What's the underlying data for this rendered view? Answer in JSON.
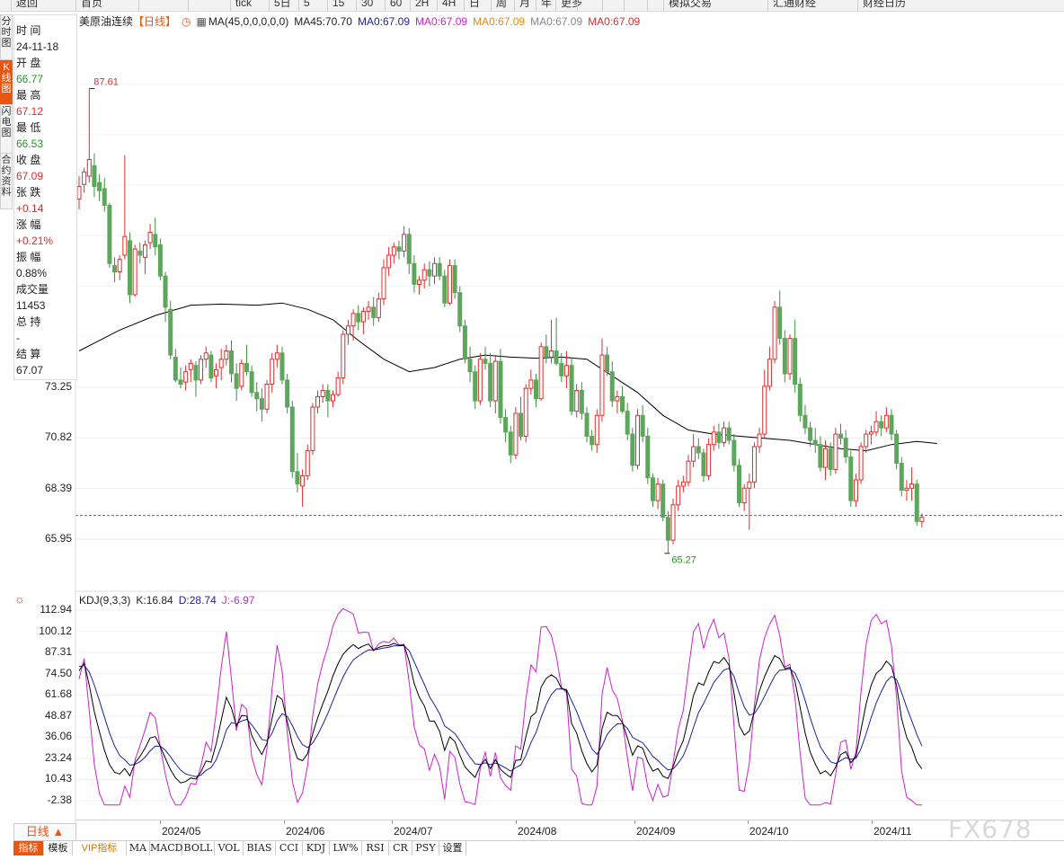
{
  "toolbar": {
    "items": [
      "返回",
      "首页",
      "",
      "",
      "tick",
      "5日",
      "5",
      "15",
      "30",
      "60",
      "2H",
      "4H",
      "日",
      "周",
      "月",
      "年",
      "更多",
      "",
      "",
      "",
      "",
      "模拟交易",
      "汇通财经",
      "财经日历"
    ]
  },
  "left_tabs": [
    "分时图",
    "K线图",
    "闪电图",
    "合约资料"
  ],
  "info_panel": {
    "time_label": "时 间",
    "time_value": "24-11-18",
    "open_label": "开 盘",
    "open_value": "66.77",
    "high_label": "最 高",
    "high_value": "67.12",
    "low_label": "最 低",
    "low_value": "66.53",
    "close_label": "收 盘",
    "close_value": "67.09",
    "change_label": "张 跌",
    "change_value": "+0.14",
    "pct_label": "涨 幅",
    "pct_value": "+0.21%",
    "amp_label": "振 幅",
    "amp_value": "0.88%",
    "vol_label": "成交量",
    "vol_value": "11453",
    "oi_label": "总 持",
    "oi_value": "-",
    "settle_label": "结 算",
    "settle_value": "67.07"
  },
  "legend": {
    "name": "美原油连续",
    "period": "【日线】",
    "ma_params": "MA(45,0,0,0,0,0)",
    "ma1": "MA45:70.70",
    "ma2": "MA0:67.09",
    "ma3": "MA0:67.09",
    "ma4": "MA0:67.09",
    "ma5": "MA0:67.09",
    "ma6": "MA0:67.09"
  },
  "colors": {
    "up": "#e02d2d",
    "down": "#5da75d",
    "ma": "#000000",
    "k": "#000000",
    "d": "#1f1fa0",
    "j": "#cc22cc",
    "last_price": "#2b7d8a",
    "accent": "#e8560f"
  },
  "kdj_legend": {
    "params": "KDJ(9,3,3)",
    "k": "K:16.84",
    "d": "D:28.74",
    "j": "J:-6.97"
  },
  "period_button": "日线 ▲",
  "bottom_tabs": [
    "指标",
    "模板",
    "VIP指标",
    "MA",
    "MACD",
    "BOLL",
    "VOL",
    "BIAS",
    "CCI",
    "KDJ",
    "LW%",
    "RSI",
    "CR",
    "PSY",
    "设置"
  ],
  "watermark": "FX678",
  "chart_data": [
    {
      "type": "candlestick",
      "y_ticks": [
        "73.25",
        "70.82",
        "68.39",
        "65.95"
      ],
      "y_ticks_values": [
        73.25,
        70.82,
        68.39,
        65.95
      ],
      "x_ticks": [
        "2024/05",
        "2024/06",
        "2024/07",
        "2024/08",
        "2024/09",
        "2024/10",
        "2024/11"
      ],
      "annotations": {
        "high_label": "87.61",
        "low_label": "65.27",
        "high": 87.61,
        "low": 65.27
      },
      "last_price": 67.09,
      "ma45_last": 70.7,
      "ohlc": [
        [
          82.3,
          83.4,
          81.8,
          82.9
        ],
        [
          83.0,
          83.8,
          82.6,
          83.6
        ],
        [
          83.4,
          87.6,
          83.1,
          84.2
        ],
        [
          83.9,
          84.5,
          82.4,
          82.9
        ],
        [
          83.1,
          83.5,
          82.2,
          82.7
        ],
        [
          82.8,
          83.3,
          81.7,
          82.0
        ],
        [
          82.0,
          82.1,
          79.0,
          79.2
        ],
        [
          79.1,
          79.5,
          78.3,
          78.8
        ],
        [
          78.8,
          79.6,
          78.4,
          79.4
        ],
        [
          79.6,
          84.4,
          79.4,
          80.5
        ],
        [
          80.3,
          80.7,
          77.3,
          77.7
        ],
        [
          77.7,
          80.1,
          77.6,
          79.9
        ],
        [
          79.8,
          80.2,
          79.2,
          79.6
        ],
        [
          79.5,
          80.3,
          78.7,
          80.1
        ],
        [
          80.2,
          81.1,
          79.9,
          80.7
        ],
        [
          80.6,
          81.4,
          79.6,
          80.0
        ],
        [
          80.1,
          80.4,
          78.4,
          78.6
        ],
        [
          78.6,
          78.8,
          76.4,
          77.1
        ],
        [
          77.0,
          77.4,
          74.6,
          74.8
        ],
        [
          74.7,
          75.1,
          73.5,
          73.6
        ],
        [
          73.6,
          74.2,
          73.2,
          73.4
        ],
        [
          73.5,
          74.3,
          73.1,
          74.0
        ],
        [
          74.1,
          74.6,
          73.5,
          74.4
        ],
        [
          74.3,
          74.5,
          72.8,
          73.6
        ],
        [
          73.6,
          74.8,
          73.4,
          74.6
        ],
        [
          74.6,
          75.2,
          74.2,
          74.9
        ],
        [
          74.8,
          75.0,
          73.5,
          73.7
        ],
        [
          73.8,
          74.4,
          73.2,
          74.1
        ],
        [
          74.2,
          75.1,
          73.6,
          74.6
        ],
        [
          74.6,
          75.3,
          74.3,
          75.0
        ],
        [
          75.0,
          75.5,
          73.5,
          73.9
        ],
        [
          73.9,
          74.4,
          72.6,
          73.2
        ],
        [
          73.3,
          74.6,
          73.1,
          74.4
        ],
        [
          74.4,
          75.3,
          73.8,
          74.0
        ],
        [
          74.0,
          74.3,
          72.8,
          73.0
        ],
        [
          73.0,
          73.5,
          72.1,
          72.7
        ],
        [
          72.7,
          73.2,
          71.6,
          72.2
        ],
        [
          72.2,
          73.6,
          72.0,
          73.4
        ],
        [
          73.4,
          74.9,
          73.0,
          74.6
        ],
        [
          74.6,
          75.3,
          74.2,
          74.9
        ],
        [
          74.9,
          75.2,
          73.4,
          73.6
        ],
        [
          73.6,
          73.9,
          72.0,
          72.3
        ],
        [
          72.3,
          72.6,
          68.9,
          69.2
        ],
        [
          69.2,
          70.1,
          68.2,
          68.6
        ],
        [
          68.5,
          69.3,
          67.5,
          69.0
        ],
        [
          69.0,
          70.5,
          68.8,
          70.2
        ],
        [
          70.2,
          72.5,
          70.0,
          72.3
        ],
        [
          72.3,
          73.1,
          72.0,
          72.8
        ],
        [
          72.8,
          73.4,
          72.5,
          73.1
        ],
        [
          73.1,
          73.4,
          71.8,
          72.6
        ],
        [
          72.6,
          73.1,
          72.3,
          72.9
        ],
        [
          72.9,
          74.0,
          72.8,
          73.7
        ],
        [
          73.7,
          76.0,
          73.4,
          75.8
        ],
        [
          75.8,
          76.5,
          75.3,
          76.2
        ],
        [
          76.2,
          77.0,
          75.5,
          76.8
        ],
        [
          76.8,
          77.2,
          76.0,
          76.4
        ],
        [
          76.4,
          77.1,
          75.8,
          76.9
        ],
        [
          76.9,
          77.4,
          76.5,
          77.1
        ],
        [
          77.1,
          77.6,
          76.2,
          76.6
        ],
        [
          76.6,
          77.8,
          76.4,
          77.5
        ],
        [
          77.5,
          79.4,
          77.2,
          79.0
        ],
        [
          79.0,
          80.0,
          78.6,
          79.6
        ],
        [
          79.6,
          80.2,
          79.2,
          80.0
        ],
        [
          80.0,
          80.3,
          79.4,
          79.8
        ],
        [
          79.8,
          81.0,
          79.5,
          80.6
        ],
        [
          80.6,
          80.9,
          78.7,
          79.2
        ],
        [
          79.2,
          79.6,
          77.8,
          78.2
        ],
        [
          78.2,
          78.6,
          77.7,
          78.4
        ],
        [
          78.4,
          79.2,
          78.0,
          78.9
        ],
        [
          78.9,
          79.3,
          78.1,
          78.6
        ],
        [
          78.6,
          79.5,
          78.2,
          79.2
        ],
        [
          79.2,
          79.5,
          78.4,
          78.6
        ],
        [
          78.6,
          78.9,
          77.1,
          77.3
        ],
        [
          77.3,
          79.4,
          77.2,
          79.1
        ],
        [
          79.1,
          79.4,
          77.5,
          77.8
        ],
        [
          77.8,
          78.1,
          75.9,
          76.2
        ],
        [
          76.2,
          76.5,
          74.4,
          74.6
        ],
        [
          74.6,
          75.2,
          73.5,
          74.0
        ],
        [
          74.0,
          74.3,
          72.2,
          72.6
        ],
        [
          72.6,
          74.9,
          72.4,
          74.6
        ],
        [
          74.6,
          75.2,
          74.1,
          74.4
        ],
        [
          74.4,
          74.9,
          72.3,
          72.6
        ],
        [
          72.6,
          74.8,
          72.0,
          74.5
        ],
        [
          74.5,
          75.1,
          71.5,
          71.8
        ],
        [
          71.8,
          72.2,
          70.6,
          71.1
        ],
        [
          71.1,
          71.4,
          69.6,
          70.0
        ],
        [
          70.0,
          72.3,
          69.8,
          72.0
        ],
        [
          72.0,
          72.8,
          70.7,
          70.9
        ],
        [
          70.9,
          73.4,
          70.6,
          73.2
        ],
        [
          73.2,
          74.1,
          72.9,
          73.6
        ],
        [
          73.6,
          73.9,
          72.3,
          72.7
        ],
        [
          72.7,
          75.4,
          72.6,
          75.2
        ],
        [
          75.2,
          75.8,
          74.4,
          74.7
        ],
        [
          74.7,
          76.5,
          74.4,
          75.0
        ],
        [
          75.0,
          76.6,
          74.3,
          74.4
        ],
        [
          74.4,
          74.9,
          73.5,
          73.8
        ],
        [
          73.8,
          75.0,
          73.2,
          74.3
        ],
        [
          74.3,
          74.7,
          71.9,
          72.1
        ],
        [
          72.1,
          73.4,
          71.8,
          73.1
        ],
        [
          73.1,
          73.5,
          71.7,
          72.0
        ],
        [
          72.0,
          72.3,
          70.6,
          70.9
        ],
        [
          70.9,
          71.2,
          70.2,
          70.5
        ],
        [
          70.5,
          72.2,
          70.1,
          71.9
        ],
        [
          71.9,
          75.6,
          71.6,
          74.8
        ],
        [
          74.8,
          75.2,
          73.8,
          74.0
        ],
        [
          74.0,
          74.5,
          72.3,
          72.6
        ],
        [
          72.6,
          73.1,
          72.0,
          72.8
        ],
        [
          72.8,
          73.3,
          72.0,
          72.1
        ],
        [
          72.1,
          72.5,
          70.7,
          71.0
        ],
        [
          71.0,
          71.3,
          69.2,
          69.5
        ],
        [
          69.5,
          72.2,
          69.3,
          71.9
        ],
        [
          71.9,
          72.4,
          70.6,
          70.9
        ],
        [
          70.9,
          71.3,
          68.6,
          68.9
        ],
        [
          68.9,
          69.1,
          67.5,
          67.8
        ],
        [
          67.8,
          68.9,
          67.4,
          68.6
        ],
        [
          68.6,
          68.8,
          66.8,
          67.0
        ],
        [
          67.0,
          67.3,
          65.3,
          65.9
        ],
        [
          65.9,
          67.9,
          65.7,
          67.6
        ],
        [
          67.6,
          68.8,
          67.3,
          68.5
        ],
        [
          68.5,
          69.0,
          68.2,
          68.7
        ],
        [
          68.7,
          70.0,
          68.5,
          69.7
        ],
        [
          69.7,
          71.0,
          69.4,
          70.4
        ],
        [
          70.4,
          70.8,
          69.8,
          70.1
        ],
        [
          70.1,
          70.3,
          68.7,
          69.0
        ],
        [
          69.0,
          70.8,
          68.8,
          70.5
        ],
        [
          70.5,
          71.4,
          70.2,
          71.1
        ],
        [
          71.1,
          71.5,
          70.3,
          70.6
        ],
        [
          70.6,
          71.6,
          70.4,
          71.3
        ],
        [
          71.3,
          71.6,
          70.5,
          70.7
        ],
        [
          70.7,
          71.0,
          69.2,
          69.5
        ],
        [
          69.5,
          69.8,
          67.5,
          67.7
        ],
        [
          67.7,
          68.6,
          67.3,
          68.4
        ],
        [
          68.4,
          69.1,
          66.4,
          68.7
        ],
        [
          68.7,
          70.6,
          68.4,
          70.4
        ],
        [
          70.4,
          71.3,
          70.1,
          71.0
        ],
        [
          71.0,
          74.1,
          70.8,
          73.3
        ],
        [
          73.3,
          75.2,
          73.1,
          74.6
        ],
        [
          74.6,
          77.4,
          74.4,
          77.1
        ],
        [
          77.1,
          77.9,
          75.3,
          75.6
        ],
        [
          75.6,
          76.0,
          73.5,
          73.9
        ],
        [
          73.9,
          75.8,
          73.6,
          75.6
        ],
        [
          75.6,
          76.5,
          73.0,
          73.4
        ],
        [
          73.4,
          73.7,
          71.6,
          71.9
        ],
        [
          71.9,
          72.4,
          71.0,
          71.3
        ],
        [
          71.3,
          71.6,
          70.4,
          70.7
        ],
        [
          70.7,
          71.3,
          70.1,
          70.5
        ],
        [
          70.5,
          70.9,
          69.2,
          69.4
        ],
        [
          69.4,
          70.7,
          68.8,
          70.3
        ],
        [
          70.3,
          70.6,
          69.0,
          69.3
        ],
        [
          69.3,
          71.3,
          69.1,
          71.0
        ],
        [
          71.0,
          71.5,
          70.5,
          70.8
        ],
        [
          70.8,
          71.2,
          69.6,
          69.9
        ],
        [
          69.9,
          70.2,
          67.5,
          67.8
        ],
        [
          67.8,
          69.1,
          67.5,
          68.8
        ],
        [
          68.8,
          70.6,
          68.6,
          70.4
        ],
        [
          70.4,
          71.2,
          70.1,
          71.0
        ],
        [
          71.0,
          71.4,
          70.5,
          71.1
        ],
        [
          71.1,
          72.1,
          70.9,
          71.6
        ],
        [
          71.6,
          71.9,
          70.9,
          71.3
        ],
        [
          71.3,
          72.3,
          71.1,
          71.9
        ],
        [
          71.9,
          72.2,
          70.7,
          71.0
        ],
        [
          71.0,
          71.2,
          69.3,
          69.6
        ],
        [
          69.6,
          69.9,
          68.0,
          68.3
        ],
        [
          68.3,
          68.8,
          67.8,
          68.4
        ],
        [
          68.4,
          69.4,
          67.8,
          68.6
        ],
        [
          68.6,
          68.8,
          66.6,
          66.8
        ],
        [
          66.8,
          67.2,
          66.5,
          67.0
        ]
      ],
      "ma45": [
        [
          0,
          75.0
        ],
        [
          8,
          76.0
        ],
        [
          15,
          76.7
        ],
        [
          22,
          77.2
        ],
        [
          28,
          77.25
        ],
        [
          35,
          77.2
        ],
        [
          40,
          77.3
        ],
        [
          45,
          77.0
        ],
        [
          50,
          76.5
        ],
        [
          55,
          75.5
        ],
        [
          60,
          74.6
        ],
        [
          65,
          74.0
        ],
        [
          70,
          74.2
        ],
        [
          75,
          74.6
        ],
        [
          80,
          74.8
        ],
        [
          85,
          74.7
        ],
        [
          90,
          74.65
        ],
        [
          95,
          74.7
        ],
        [
          100,
          74.6
        ],
        [
          105,
          73.8
        ],
        [
          110,
          73.0
        ],
        [
          115,
          71.9
        ],
        [
          120,
          71.2
        ],
        [
          125,
          71.0
        ],
        [
          130,
          70.9
        ],
        [
          135,
          70.8
        ],
        [
          140,
          70.7
        ],
        [
          145,
          70.5
        ],
        [
          150,
          70.3
        ],
        [
          155,
          70.2
        ],
        [
          160,
          70.5
        ],
        [
          165,
          70.65
        ],
        [
          169,
          70.55
        ]
      ]
    },
    {
      "type": "line",
      "y_ticks": [
        "112.94",
        "100.12",
        "87.31",
        "74.50",
        "61.68",
        "48.87",
        "36.06",
        "23.24",
        "10.43",
        "-2.38"
      ],
      "y_ticks_values": [
        112.94,
        100.12,
        87.31,
        74.5,
        61.68,
        48.87,
        36.06,
        23.24,
        10.43,
        -2.38
      ],
      "series": [
        {
          "name": "K",
          "last": 16.84
        },
        {
          "name": "D",
          "last": 28.74
        },
        {
          "name": "J",
          "last": -6.97
        }
      ],
      "last_values": {
        "k": 16.84,
        "d": 28.74,
        "j": -6.97
      }
    }
  ]
}
